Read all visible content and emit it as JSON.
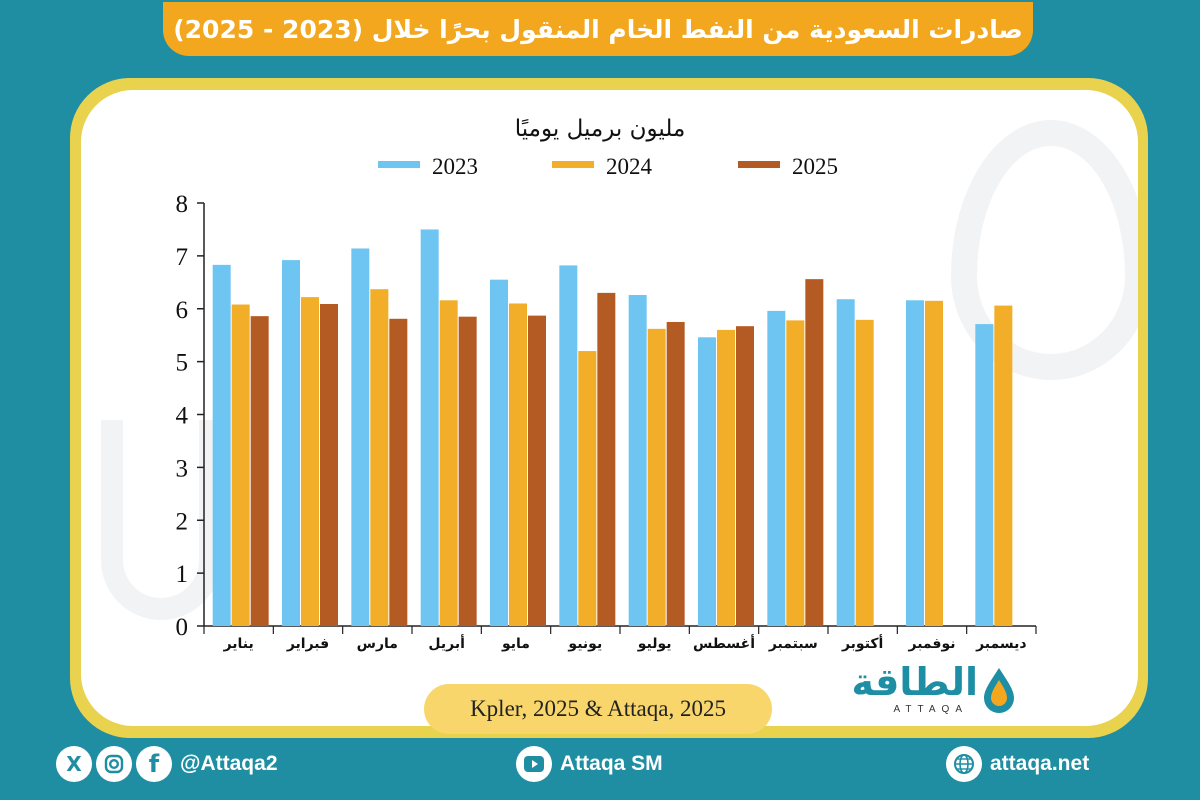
{
  "title": "صادرات السعودية من النفط الخام المنقول بحرًا خلال (2023 - 2025)",
  "source": "Kpler, 2025 & Attaqa, 2025",
  "logo": {
    "arabic": "الطاقة",
    "english": "ATTAQA"
  },
  "footer": {
    "social_handle": "@Attaqa2",
    "youtube": "Attaqa SM",
    "website": "attaqa.net",
    "icons": [
      "x-icon",
      "instagram-icon",
      "facebook-icon",
      "youtube-icon",
      "globe-icon"
    ]
  },
  "colors": {
    "background": "#1f8ea3",
    "banner": "#f2a71f",
    "frame": "#e9d24d",
    "series_2023": "#6ec5f2",
    "series_2024": "#f2ae28",
    "series_2025": "#b45a23"
  },
  "chart_data": {
    "type": "bar",
    "title": "مليون برميل يوميًا",
    "categories": [
      "يناير",
      "فبراير",
      "مارس",
      "أبريل",
      "مايو",
      "يونيو",
      "يوليو",
      "أغسطس",
      "سبتمبر",
      "أكتوبر",
      "نوفمبر",
      "ديسمبر"
    ],
    "series": [
      {
        "name": "2023",
        "color": "#6ec5f2",
        "values": [
          6.83,
          6.92,
          7.14,
          7.5,
          6.55,
          6.82,
          6.26,
          5.46,
          5.96,
          6.18,
          6.16,
          5.71
        ]
      },
      {
        "name": "2024",
        "color": "#f2ae28",
        "values": [
          6.08,
          6.22,
          6.37,
          6.16,
          6.1,
          5.2,
          5.62,
          5.6,
          5.78,
          5.79,
          6.15,
          6.06
        ]
      },
      {
        "name": "2025",
        "color": "#b45a23",
        "values": [
          5.86,
          6.09,
          5.81,
          5.85,
          5.87,
          6.3,
          5.75,
          5.67,
          6.56,
          null,
          null,
          null
        ]
      }
    ],
    "yticks": [
      0,
      1,
      2,
      3,
      4,
      5,
      6,
      7,
      8
    ],
    "ylim": [
      0,
      8
    ],
    "legend": "top-center",
    "grid": false
  }
}
